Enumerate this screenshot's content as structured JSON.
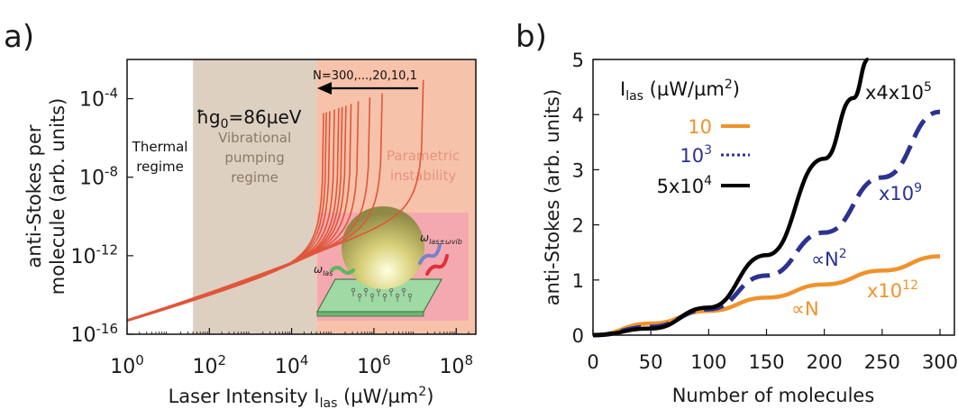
{
  "chart_data": [
    {
      "panel_label": "a)",
      "type": "line",
      "xlabel": "Laser Intensity I",
      "xlabel_sub": "las",
      "xlabel_unit": " (µW/µm",
      "xlabel_unit_sup": "2",
      "xlabel_unit_end": ")",
      "ylabel_line1": "anti-Stokes per",
      "ylabel_line2": "molecule (arb. units)",
      "xscale": "log",
      "yscale": "log",
      "xlim": [
        1,
        300000000
      ],
      "ylim": [
        1e-16,
        0.01
      ],
      "x_ticks": [
        {
          "value": 1,
          "base": "10",
          "exp": "0"
        },
        {
          "value": 100,
          "base": "10",
          "exp": "2"
        },
        {
          "value": 10000,
          "base": "10",
          "exp": "4"
        },
        {
          "value": 1000000,
          "base": "10",
          "exp": "6"
        },
        {
          "value": 100000000,
          "base": "10",
          "exp": "8"
        }
      ],
      "y_ticks": [
        {
          "value": 1e-16,
          "base": "10",
          "exp": "-16"
        },
        {
          "value": 1e-12,
          "base": "10",
          "exp": "-12"
        },
        {
          "value": 1e-08,
          "base": "10",
          "exp": "-8"
        },
        {
          "value": 0.0001,
          "base": "10",
          "exp": "-4"
        }
      ],
      "regions": [
        {
          "label_lines": [
            "Thermal",
            "regime"
          ],
          "x_from": 1,
          "x_to": 40,
          "color": "#ffffff",
          "text_color": "#111111"
        },
        {
          "label_lines": [
            "Vibrational",
            "pumping",
            "regime"
          ],
          "x_from": 40,
          "x_to": 40000,
          "color": "#ddd0c0",
          "text_color": "#8a7a66"
        },
        {
          "label_lines": [
            "Parametric",
            "instability"
          ],
          "x_from": 40000,
          "x_to": 300000000,
          "color": "#f7c2aa",
          "text_color": "#e8937f"
        }
      ],
      "annotation_arrow": "N=300,...,20,10,1",
      "annotation_coupling": {
        "prefix": "ħg",
        "sub": "0",
        "suffix": "=86µeV"
      },
      "inset": {
        "label_in": {
          "main": "ω",
          "sub": "las"
        },
        "label_out": {
          "main": "ω",
          "sub": "las±ωvib"
        }
      },
      "curve_color": "#e0563a",
      "series": [
        {
          "N": 300,
          "divergence_x": 60000
        },
        {
          "N": 250,
          "divergence_x": 70000
        },
        {
          "N": 200,
          "divergence_x": 85000
        },
        {
          "N": 150,
          "divergence_x": 110000
        },
        {
          "N": 120,
          "divergence_x": 140000
        },
        {
          "N": 100,
          "divergence_x": 170000
        },
        {
          "N": 80,
          "divergence_x": 210000
        },
        {
          "N": 60,
          "divergence_x": 280000
        },
        {
          "N": 40,
          "divergence_x": 420000
        },
        {
          "N": 20,
          "divergence_x": 800000
        },
        {
          "N": 10,
          "divergence_x": 1600000
        },
        {
          "N": 1,
          "divergence_x": 16000000
        }
      ]
    },
    {
      "panel_label": "b)",
      "type": "line",
      "xlabel": "Number of molecules",
      "ylabel": "anti-Stokes (arb. units)",
      "xlim": [
        0,
        300
      ],
      "ylim": [
        0,
        5
      ],
      "x_ticks": [
        0,
        50,
        100,
        150,
        200,
        250,
        300
      ],
      "y_ticks": [
        0,
        1,
        2,
        3,
        4,
        5
      ],
      "legend_title": {
        "main": "I",
        "sub": "las",
        "unit": " (µW/µm",
        "sup": "2",
        "end": ")"
      },
      "series": [
        {
          "legend": {
            "base": "10",
            "exp": ""
          },
          "color": "#f0922b",
          "style": "solid",
          "scale_label": {
            "base": "x10",
            "exp": "12"
          },
          "x": [
            0,
            50,
            100,
            150,
            200,
            250,
            300
          ],
          "y": [
            0.0,
            0.21,
            0.44,
            0.68,
            0.92,
            1.17,
            1.43
          ]
        },
        {
          "legend": {
            "base": "10",
            "exp": "3"
          },
          "color": "#2b3290",
          "style": "dashed",
          "scale_label": {
            "base": "x10",
            "exp": "9"
          },
          "x": [
            0,
            50,
            100,
            150,
            200,
            250,
            300
          ],
          "y": [
            0.0,
            0.15,
            0.47,
            1.08,
            1.86,
            2.86,
            4.05
          ]
        },
        {
          "legend": {
            "base": "5x10",
            "exp": "4"
          },
          "color": "#000000",
          "style": "solid",
          "scale_label": {
            "base": "x4x10",
            "exp": "5"
          },
          "x": [
            0,
            50,
            100,
            150,
            200,
            225,
            238
          ],
          "y": [
            0.0,
            0.12,
            0.5,
            1.45,
            3.2,
            4.3,
            5.0
          ]
        }
      ],
      "annotations": [
        {
          "text": "∝N",
          "sup": "",
          "color": "#f0922b",
          "x": 185,
          "y": 0.9
        },
        {
          "text": "∝N",
          "sup": "2",
          "color": "#2b3290",
          "x": 200,
          "y": 1.7
        }
      ]
    }
  ]
}
